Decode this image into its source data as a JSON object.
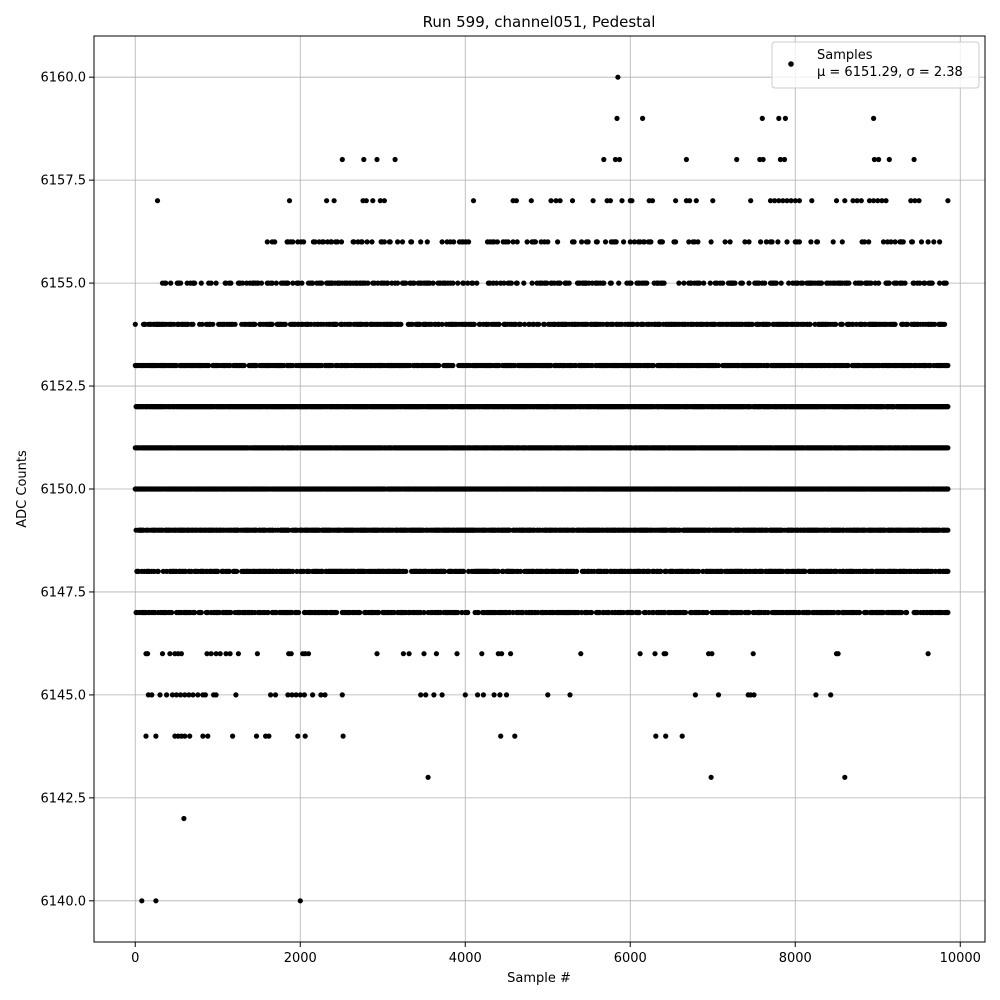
{
  "chart_data": {
    "type": "scatter",
    "title": "Run 599, channel051, Pedestal",
    "xlabel": "Sample #",
    "ylabel": "ADC Counts",
    "xlim": [
      -500,
      10300
    ],
    "ylim": [
      6139,
      6161
    ],
    "x_ticks": [
      0,
      2000,
      4000,
      6000,
      8000,
      10000
    ],
    "x_tick_labels": [
      "0",
      "2000",
      "4000",
      "6000",
      "8000",
      "10000"
    ],
    "y_ticks": [
      6140.0,
      6142.5,
      6145.0,
      6147.5,
      6150.0,
      6152.5,
      6155.0,
      6157.5,
      6160.0
    ],
    "y_tick_labels": [
      "6140.0",
      "6142.5",
      "6145.0",
      "6147.5",
      "6150.0",
      "6152.5",
      "6155.0",
      "6157.5",
      "6160.0"
    ],
    "grid": true,
    "legend_position": "top-right",
    "marker_color": "#000000",
    "series": [
      {
        "name": "Samples",
        "legend_stats": "μ = 6151.29, σ = 2.38",
        "points": [
          [
            0,
            6154
          ],
          [
            80,
            6140
          ],
          [
            250,
            6140
          ],
          [
            2000,
            6140
          ],
          [
            590,
            6142
          ],
          [
            3550,
            6143
          ],
          [
            6980,
            6143
          ],
          [
            8600,
            6143
          ],
          [
            5850,
            6160
          ],
          [
            5840,
            6159
          ],
          [
            6150,
            6159
          ],
          [
            7600,
            6159
          ],
          [
            7800,
            6159
          ],
          [
            7880,
            6159
          ],
          [
            8950,
            6159
          ],
          [
            2510,
            6158
          ],
          [
            2770,
            6158
          ],
          [
            2930,
            6158
          ],
          [
            3150,
            6158
          ],
          [
            5680,
            6158
          ],
          [
            5820,
            6158
          ],
          [
            5870,
            6158
          ],
          [
            6680,
            6158
          ],
          [
            7290,
            6158
          ],
          [
            7570,
            6158
          ],
          [
            7610,
            6158
          ],
          [
            7820,
            6158
          ],
          [
            7870,
            6158
          ],
          [
            8960,
            6158
          ],
          [
            9010,
            6158
          ],
          [
            9140,
            6158
          ],
          [
            9440,
            6158
          ],
          [
            270,
            6157
          ],
          [
            1870,
            6157
          ],
          [
            2320,
            6157
          ],
          [
            2410,
            6157
          ],
          [
            2760,
            6157
          ],
          [
            2800,
            6157
          ],
          [
            2880,
            6157
          ],
          [
            2970,
            6157
          ],
          [
            3020,
            6157
          ],
          [
            4100,
            6157
          ],
          [
            4580,
            6157
          ],
          [
            4620,
            6157
          ],
          [
            4800,
            6157
          ],
          [
            5040,
            6157
          ],
          [
            5100,
            6157
          ],
          [
            5150,
            6157
          ],
          [
            5300,
            6157
          ],
          [
            5550,
            6157
          ],
          [
            5720,
            6157
          ],
          [
            5760,
            6157
          ],
          [
            5900,
            6157
          ],
          [
            6000,
            6157
          ],
          [
            6020,
            6157
          ],
          [
            6230,
            6157
          ],
          [
            6270,
            6157
          ],
          [
            6550,
            6157
          ],
          [
            6680,
            6157
          ],
          [
            6720,
            6157
          ],
          [
            6800,
            6157
          ],
          [
            7000,
            6157
          ],
          [
            7460,
            6157
          ],
          [
            7700,
            6157
          ],
          [
            7750,
            6157
          ],
          [
            7800,
            6157
          ],
          [
            7850,
            6157
          ],
          [
            7900,
            6157
          ],
          [
            7950,
            6157
          ],
          [
            8000,
            6157
          ],
          [
            8050,
            6157
          ],
          [
            8200,
            6157
          ],
          [
            8500,
            6157
          ],
          [
            8600,
            6157
          ],
          [
            8700,
            6157
          ],
          [
            8750,
            6157
          ],
          [
            8800,
            6157
          ],
          [
            8900,
            6157
          ],
          [
            8950,
            6157
          ],
          [
            9000,
            6157
          ],
          [
            9050,
            6157
          ],
          [
            9100,
            6157
          ],
          [
            9400,
            6157
          ],
          [
            9450,
            6157
          ],
          [
            9500,
            6157
          ],
          [
            9850,
            6157
          ],
          [
            130,
            6146
          ],
          [
            150,
            6146
          ],
          [
            330,
            6146
          ],
          [
            420,
            6146
          ],
          [
            480,
            6146
          ],
          [
            520,
            6146
          ],
          [
            560,
            6146
          ],
          [
            870,
            6146
          ],
          [
            920,
            6146
          ],
          [
            980,
            6146
          ],
          [
            1030,
            6146
          ],
          [
            1100,
            6146
          ],
          [
            1150,
            6146
          ],
          [
            1250,
            6146
          ],
          [
            1480,
            6146
          ],
          [
            1860,
            6146
          ],
          [
            1890,
            6146
          ],
          [
            2030,
            6146
          ],
          [
            2060,
            6146
          ],
          [
            2100,
            6146
          ],
          [
            2930,
            6146
          ],
          [
            3250,
            6146
          ],
          [
            3320,
            6146
          ],
          [
            3500,
            6146
          ],
          [
            3650,
            6146
          ],
          [
            3900,
            6146
          ],
          [
            4200,
            6146
          ],
          [
            4400,
            6146
          ],
          [
            4440,
            6146
          ],
          [
            4550,
            6146
          ],
          [
            5400,
            6146
          ],
          [
            6120,
            6146
          ],
          [
            6300,
            6146
          ],
          [
            6410,
            6146
          ],
          [
            6430,
            6146
          ],
          [
            6950,
            6146
          ],
          [
            6990,
            6146
          ],
          [
            7490,
            6146
          ],
          [
            8500,
            6146
          ],
          [
            8520,
            6146
          ],
          [
            9610,
            6146
          ],
          [
            160,
            6145
          ],
          [
            200,
            6145
          ],
          [
            300,
            6145
          ],
          [
            380,
            6145
          ],
          [
            450,
            6145
          ],
          [
            500,
            6145
          ],
          [
            550,
            6145
          ],
          [
            600,
            6145
          ],
          [
            650,
            6145
          ],
          [
            700,
            6145
          ],
          [
            760,
            6145
          ],
          [
            820,
            6145
          ],
          [
            850,
            6145
          ],
          [
            950,
            6145
          ],
          [
            980,
            6145
          ],
          [
            1220,
            6145
          ],
          [
            1640,
            6145
          ],
          [
            1700,
            6145
          ],
          [
            1850,
            6145
          ],
          [
            1900,
            6145
          ],
          [
            1950,
            6145
          ],
          [
            2000,
            6145
          ],
          [
            2050,
            6145
          ],
          [
            2150,
            6145
          ],
          [
            2250,
            6145
          ],
          [
            2300,
            6145
          ],
          [
            2510,
            6145
          ],
          [
            3460,
            6145
          ],
          [
            3520,
            6145
          ],
          [
            3620,
            6145
          ],
          [
            3720,
            6145
          ],
          [
            4000,
            6145
          ],
          [
            4150,
            6145
          ],
          [
            4220,
            6145
          ],
          [
            4350,
            6145
          ],
          [
            4420,
            6145
          ],
          [
            4500,
            6145
          ],
          [
            5000,
            6145
          ],
          [
            5270,
            6145
          ],
          [
            6790,
            6145
          ],
          [
            7070,
            6145
          ],
          [
            7430,
            6145
          ],
          [
            7460,
            6145
          ],
          [
            7500,
            6145
          ],
          [
            8250,
            6145
          ],
          [
            8430,
            6145
          ],
          [
            130,
            6144
          ],
          [
            250,
            6144
          ],
          [
            480,
            6144
          ],
          [
            520,
            6144
          ],
          [
            560,
            6144
          ],
          [
            600,
            6144
          ],
          [
            660,
            6144
          ],
          [
            820,
            6144
          ],
          [
            880,
            6144
          ],
          [
            1180,
            6144
          ],
          [
            1470,
            6144
          ],
          [
            1580,
            6144
          ],
          [
            1620,
            6144
          ],
          [
            1970,
            6144
          ],
          [
            2060,
            6144
          ],
          [
            2520,
            6144
          ],
          [
            4430,
            6144
          ],
          [
            4600,
            6144
          ],
          [
            6310,
            6144
          ],
          [
            6430,
            6144
          ],
          [
            6630,
            6144
          ]
        ],
        "dense_rows": [
          {
            "y": 6147,
            "x_from": 0,
            "x_to": 9850,
            "density": 0.55
          },
          {
            "y": 6148,
            "x_from": 0,
            "x_to": 9850,
            "density": 0.6
          },
          {
            "y": 6149,
            "x_from": 0,
            "x_to": 9850,
            "density": 0.8
          },
          {
            "y": 6150,
            "x_from": 0,
            "x_to": 9850,
            "density": 0.95
          },
          {
            "y": 6151,
            "x_from": 0,
            "x_to": 9850,
            "density": 0.95
          },
          {
            "y": 6152,
            "x_from": 0,
            "x_to": 9850,
            "density": 0.9
          },
          {
            "y": 6153,
            "x_from": 0,
            "x_to": 9850,
            "density": 0.7
          },
          {
            "y": 6154,
            "x_from": 100,
            "x_to": 9850,
            "density": 0.5
          },
          {
            "y": 6155,
            "x_from": 300,
            "x_to": 9850,
            "density": 0.3
          },
          {
            "y": 6156,
            "x_from": 1600,
            "x_to": 9850,
            "density": 0.18
          }
        ]
      }
    ]
  }
}
